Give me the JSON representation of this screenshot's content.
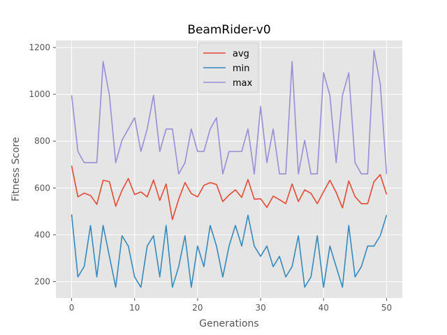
{
  "chart_data": {
    "type": "line",
    "title": "BeamRider-v0",
    "xlabel": "Generations",
    "ylabel": "Fitness Score",
    "xlim": [
      -2.5,
      52.5
    ],
    "ylim": [
      130,
      1230
    ],
    "xticks": [
      0,
      10,
      20,
      30,
      40,
      50
    ],
    "yticks": [
      200,
      400,
      600,
      800,
      1000,
      1200
    ],
    "grid": true,
    "legend_position": "top-center",
    "x": [
      0,
      1,
      2,
      3,
      4,
      5,
      6,
      7,
      8,
      9,
      10,
      11,
      12,
      13,
      14,
      15,
      16,
      17,
      18,
      19,
      20,
      21,
      22,
      23,
      24,
      25,
      26,
      27,
      28,
      29,
      30,
      31,
      32,
      33,
      34,
      35,
      36,
      37,
      38,
      39,
      40,
      41,
      42,
      43,
      44,
      45,
      46,
      47,
      48,
      49,
      50
    ],
    "series": [
      {
        "name": "avg",
        "color": "#E24A33",
        "values": [
          695,
          562,
          578,
          568,
          530,
          633,
          627,
          522,
          590,
          640,
          572,
          583,
          562,
          634,
          547,
          617,
          465,
          552,
          623,
          576,
          562,
          611,
          623,
          615,
          542,
          570,
          592,
          560,
          636,
          552,
          554,
          517,
          565,
          550,
          533,
          617,
          542,
          592,
          577,
          533,
          584,
          633,
          581,
          515,
          630,
          563,
          533,
          533,
          627,
          657,
          573
        ]
      },
      {
        "name": "min",
        "color": "#348ABD",
        "values": [
          487,
          220,
          265,
          440,
          220,
          440,
          308,
          176,
          396,
          352,
          220,
          176,
          352,
          396,
          220,
          440,
          176,
          264,
          396,
          176,
          352,
          264,
          440,
          352,
          220,
          352,
          440,
          352,
          484,
          352,
          308,
          352,
          264,
          308,
          220,
          264,
          396,
          176,
          220,
          396,
          176,
          352,
          264,
          176,
          440,
          220,
          264,
          352,
          352,
          396,
          484
        ]
      },
      {
        "name": "max",
        "color": "#988ED5",
        "values": [
          996,
          756,
          708,
          708,
          708,
          1140,
          996,
          708,
          804,
          852,
          900,
          756,
          852,
          996,
          756,
          852,
          852,
          660,
          708,
          852,
          756,
          756,
          852,
          900,
          660,
          756,
          756,
          756,
          852,
          660,
          948,
          708,
          852,
          660,
          660,
          1140,
          660,
          804,
          660,
          660,
          1092,
          996,
          708,
          996,
          1092,
          708,
          660,
          660,
          1188,
          1044,
          660
        ]
      }
    ]
  }
}
